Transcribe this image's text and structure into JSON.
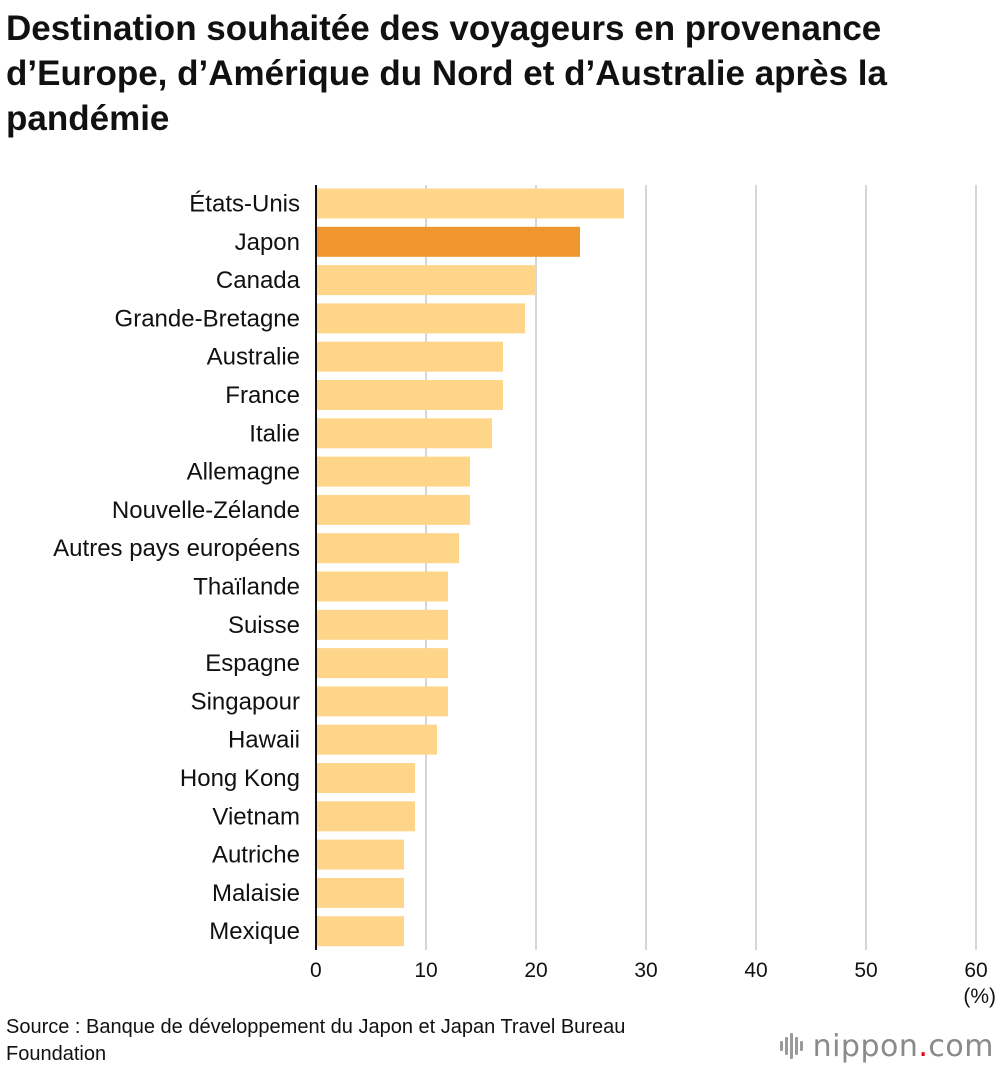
{
  "chart_data": {
    "type": "bar",
    "orientation": "horizontal",
    "title": "Destination souhaitée des voyageurs en provenance d’Europe, d’Amérique du Nord et d’Australie après la pandémie",
    "categories": [
      "États-Unis",
      "Japon",
      "Canada",
      "Grande-Bretagne",
      "Australie",
      "France",
      "Italie",
      "Allemagne",
      "Nouvelle-Zélande",
      "Autres pays européens",
      "Thaïlande",
      "Suisse",
      "Espagne",
      "Singapour",
      "Hawaii",
      "Hong Kong",
      "Vietnam",
      "Autriche",
      "Malaisie",
      "Mexique"
    ],
    "values": [
      28,
      24,
      20,
      19,
      17,
      17,
      16,
      14,
      14,
      13,
      12,
      12,
      12,
      12,
      11,
      9,
      9,
      8,
      8,
      8
    ],
    "xlim": [
      0,
      60
    ],
    "xticks": [
      "0",
      "10",
      "20",
      "30",
      "40",
      "50",
      "60"
    ],
    "unit_label": "(%)",
    "grid": true,
    "colors": {
      "bar": "#FFD58A",
      "highlight": "#F0962E",
      "grid": "#C8C8C8",
      "axis": "#111111"
    },
    "highlight_category": "Japon"
  },
  "source": "Source : Banque de développement du Japon et Japan Travel Bureau Foundation",
  "logo": {
    "name": "nippon",
    "dot": ".",
    "suffix": "com"
  }
}
